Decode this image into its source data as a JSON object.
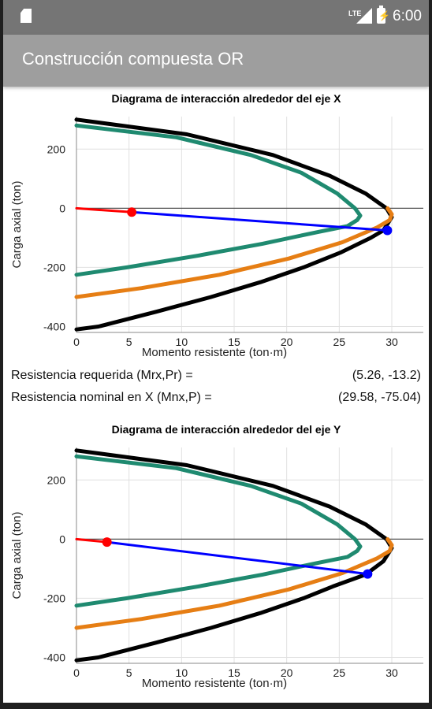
{
  "status_bar": {
    "network": "LTE",
    "time": "6:00",
    "icons": [
      "sd-card-icon",
      "signal-icon",
      "battery-charging-icon"
    ]
  },
  "app_bar": {
    "title": "Construcción compuesta OR"
  },
  "results": {
    "required": {
      "label": "Resistencia requerida (Mrx,Pr) =",
      "value": "(5.26, -13.2)"
    },
    "nominal": {
      "label": "Resistencia nominal en X (Mnx,P) =",
      "value": "(29.58, -75.04)"
    }
  },
  "chart_data": [
    {
      "type": "line",
      "title": "Diagrama de interacción alrededor del eje X",
      "xlabel": "Momento resistente (ton·m)",
      "ylabel": "Carga axial (ton)",
      "xlim": [
        0,
        33
      ],
      "ylim": [
        -420,
        310
      ],
      "xticks": [
        0,
        5,
        10,
        15,
        20,
        25,
        30
      ],
      "yticks": [
        -400,
        -200,
        0,
        200
      ],
      "grid": true,
      "series": [
        {
          "color": "#000000",
          "points": [
            [
              0,
              300
            ],
            [
              10.5,
              250
            ],
            [
              18.7,
              180
            ],
            [
              24.1,
              110
            ],
            [
              27.5,
              50
            ],
            [
              29.5,
              0
            ],
            [
              30,
              -30
            ],
            [
              29.2,
              -75
            ],
            [
              28,
              -100
            ],
            [
              25.1,
              -150
            ],
            [
              21.6,
              -200
            ],
            [
              17.5,
              -250
            ],
            [
              12.8,
              -300
            ],
            [
              7.6,
              -350
            ],
            [
              2.1,
              -400
            ],
            [
              0,
              -410
            ]
          ]
        },
        {
          "color": "#1f8a70",
          "points": [
            [
              0,
              280
            ],
            [
              9.5,
              240
            ],
            [
              16.6,
              180
            ],
            [
              21.4,
              120
            ],
            [
              24.8,
              50
            ],
            [
              26.5,
              0
            ],
            [
              27,
              -25
            ],
            [
              26.7,
              -40
            ],
            [
              25.8,
              -60
            ],
            [
              23,
              -80
            ],
            [
              17.7,
              -120
            ],
            [
              11.6,
              -160
            ],
            [
              4.8,
              -200
            ],
            [
              0,
              -225
            ]
          ]
        },
        {
          "color": "#e67e14",
          "points": [
            [
              0,
              -300
            ],
            [
              6.2,
              -270
            ],
            [
              13.6,
              -225
            ],
            [
              20.2,
              -170
            ],
            [
              25.3,
              -115
            ],
            [
              28.6,
              -65
            ],
            [
              29.8,
              -40
            ],
            [
              30,
              -20
            ],
            [
              29.6,
              0
            ]
          ]
        },
        {
          "color": "#ff0000",
          "points": [
            [
              0,
              0
            ],
            [
              5.26,
              -13.2
            ]
          ]
        },
        {
          "color": "#0000ff",
          "points": [
            [
              5.26,
              -13.2
            ],
            [
              29.58,
              -75.04
            ]
          ]
        }
      ],
      "markers": [
        {
          "x": 5.26,
          "y": -13.2,
          "color": "#ff0000"
        },
        {
          "x": 29.58,
          "y": -75.04,
          "color": "#0000ff"
        }
      ]
    },
    {
      "type": "line",
      "title": "Diagrama de interacción alrededor del eje Y",
      "xlabel": "Momento resistente (ton·m)",
      "ylabel": "Carga axial (ton)",
      "xlim": [
        0,
        33
      ],
      "ylim": [
        -420,
        310
      ],
      "xticks": [
        0,
        5,
        10,
        15,
        20,
        25,
        30
      ],
      "yticks": [
        -400,
        -200,
        0,
        200
      ],
      "grid": true,
      "series": [
        {
          "color": "#000000",
          "points": [
            [
              0,
              300
            ],
            [
              10.5,
              250
            ],
            [
              18.7,
              180
            ],
            [
              24.1,
              110
            ],
            [
              27.5,
              50
            ],
            [
              29.5,
              0
            ],
            [
              30,
              -30
            ],
            [
              29.2,
              -75
            ],
            [
              27.5,
              -120
            ],
            [
              24.4,
              -160
            ],
            [
              21.6,
              -200
            ],
            [
              17.5,
              -250
            ],
            [
              12.8,
              -300
            ],
            [
              7.6,
              -350
            ],
            [
              2.1,
              -400
            ],
            [
              0,
              -410
            ]
          ]
        },
        {
          "color": "#1f8a70",
          "points": [
            [
              0,
              280
            ],
            [
              9.5,
              240
            ],
            [
              16.6,
              180
            ],
            [
              21.4,
              120
            ],
            [
              24.8,
              50
            ],
            [
              26.5,
              0
            ],
            [
              27,
              -25
            ],
            [
              26.7,
              -40
            ],
            [
              25.8,
              -60
            ],
            [
              23,
              -80
            ],
            [
              17.7,
              -120
            ],
            [
              11.6,
              -160
            ],
            [
              4.8,
              -200
            ],
            [
              0,
              -225
            ]
          ]
        },
        {
          "color": "#e67e14",
          "points": [
            [
              0,
              -300
            ],
            [
              6.2,
              -270
            ],
            [
              13.6,
              -225
            ],
            [
              20.2,
              -170
            ],
            [
              25.3,
              -115
            ],
            [
              28.6,
              -65
            ],
            [
              29.8,
              -40
            ],
            [
              30,
              -20
            ],
            [
              29.6,
              0
            ]
          ]
        },
        {
          "color": "#ff0000",
          "points": [
            [
              0,
              0
            ],
            [
              2.9,
              -10
            ]
          ]
        },
        {
          "color": "#0000ff",
          "points": [
            [
              2.9,
              -10
            ],
            [
              27.7,
              -118
            ]
          ]
        }
      ],
      "markers": [
        {
          "x": 2.9,
          "y": -10,
          "color": "#ff0000"
        },
        {
          "x": 27.7,
          "y": -118,
          "color": "#0000ff"
        }
      ]
    }
  ]
}
